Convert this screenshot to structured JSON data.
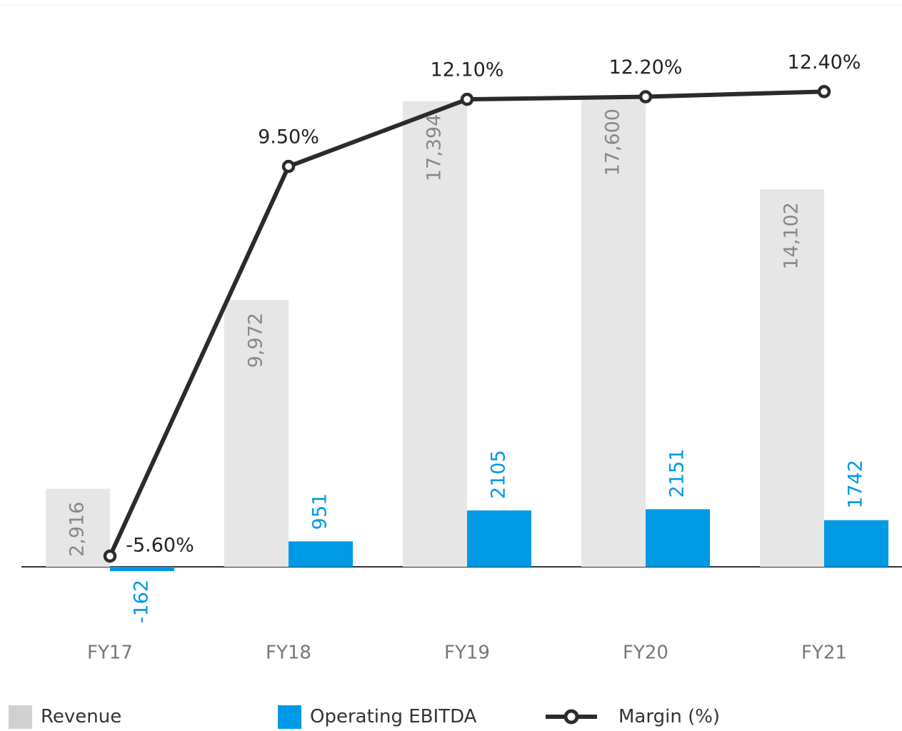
{
  "chart_data": {
    "type": "bar",
    "categories": [
      "FY17",
      "FY18",
      "FY19",
      "FY20",
      "FY21"
    ],
    "series": [
      {
        "name": "Revenue",
        "values": [
          2916,
          9972,
          17394,
          17600,
          14102
        ],
        "labels": [
          "2,916",
          "9,972",
          "17,394",
          "17,600",
          "14,102"
        ],
        "color": "#e6e6e6",
        "label_color": "#888888"
      },
      {
        "name": "Operating EBITDA",
        "values": [
          -162,
          951,
          2105,
          2151,
          1742
        ],
        "labels": [
          "-162",
          "951",
          "2105",
          "2151",
          "1742"
        ],
        "color": "#0099e5",
        "label_color": "#0099e5"
      },
      {
        "name": "Margin (%)",
        "type": "line",
        "values": [
          -5.6,
          9.5,
          12.1,
          12.2,
          12.4
        ],
        "labels": [
          "-5.60%",
          "9.50%",
          "12.10%",
          "12.20%",
          "12.40%"
        ],
        "color": "#2b2b2b"
      }
    ],
    "title": "",
    "xlabel": "",
    "ylabel": "",
    "legend": "bottom",
    "grid": false
  }
}
